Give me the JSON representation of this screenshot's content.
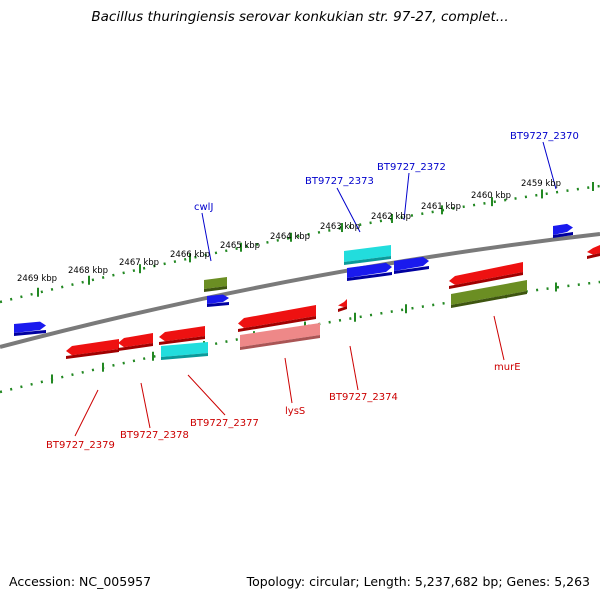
{
  "title": "Bacillus thuringiensis serovar konkukian str. 97-27, complet...",
  "footer": {
    "accession": "Accession: NC_005957",
    "summary": "Topology: circular; Length: 5,237,682 bp; Genes: 5,263"
  },
  "colors": {
    "backbone": "#7a7a7a",
    "tick": "#228822",
    "forward_label": "#0000cc",
    "reverse_label": "#cc0000"
  },
  "position_labels": [
    "2469 kbp",
    "2468 kbp",
    "2467 kbp",
    "2466 kbp",
    "2465 kbp",
    "2464 kbp",
    "2463 kbp",
    "2462 kbp",
    "2461 kbp",
    "2460 kbp",
    "2459 kbp"
  ],
  "gene_labels": [
    {
      "text": "cwlJ",
      "strand": "forward"
    },
    {
      "text": "BT9727_2373",
      "strand": "forward"
    },
    {
      "text": "BT9727_2372",
      "strand": "forward"
    },
    {
      "text": "BT9727_2370",
      "strand": "forward"
    },
    {
      "text": "BT9727_2379",
      "strand": "reverse"
    },
    {
      "text": "BT9727_2378",
      "strand": "reverse"
    },
    {
      "text": "BT9727_2377",
      "strand": "reverse"
    },
    {
      "text": "lysS",
      "strand": "reverse"
    },
    {
      "text": "BT9727_2374",
      "strand": "reverse"
    },
    {
      "text": "murE",
      "strand": "reverse"
    }
  ]
}
